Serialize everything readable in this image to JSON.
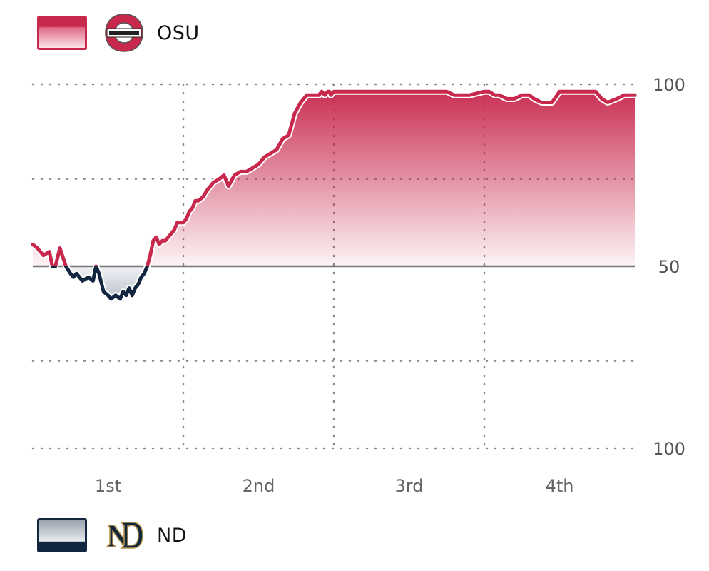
{
  "teams": {
    "top": {
      "name": "OSU",
      "color": "#c8284c",
      "logo_icon": "ohio-state-logo"
    },
    "bottom": {
      "name": "ND",
      "color": "#132640",
      "logo_icon": "notre-dame-logo"
    }
  },
  "chart_data": {
    "type": "area",
    "title": "",
    "xlabel": "",
    "ylabel": "",
    "baseline": 50,
    "ylim": [
      0,
      100
    ],
    "xlim": [
      0,
      4
    ],
    "y_tick_labels": [
      {
        "value": 100,
        "label": "100"
      },
      {
        "value": 50,
        "label": "50"
      },
      {
        "value": 0,
        "label": "100"
      }
    ],
    "x_tick_labels": [
      {
        "value": 0.5,
        "label": "1st"
      },
      {
        "value": 1.5,
        "label": "2nd"
      },
      {
        "value": 2.5,
        "label": "3rd"
      },
      {
        "value": 3.5,
        "label": "4th"
      }
    ],
    "gridlines_y": [
      100,
      74,
      24,
      0
    ],
    "gridlines_x": [
      1,
      2,
      3
    ],
    "grid": true,
    "series": [
      {
        "above_color": "#c8284c",
        "below_color": "#132640",
        "x": [
          0,
          0.03,
          0.07,
          0.11,
          0.13,
          0.15,
          0.18,
          0.22,
          0.25,
          0.27,
          0.29,
          0.33,
          0.37,
          0.4,
          0.42,
          0.44,
          0.47,
          0.5,
          0.52,
          0.55,
          0.58,
          0.6,
          0.62,
          0.64,
          0.66,
          0.68,
          0.7,
          0.72,
          0.74,
          0.76,
          0.78,
          0.8,
          0.82,
          0.84,
          0.86,
          0.88,
          0.9,
          0.92,
          0.94,
          0.96,
          0.98,
          1.0,
          1.02,
          1.04,
          1.06,
          1.08,
          1.1,
          1.13,
          1.16,
          1.2,
          1.24,
          1.27,
          1.3,
          1.34,
          1.38,
          1.42,
          1.46,
          1.5,
          1.54,
          1.58,
          1.62,
          1.66,
          1.7,
          1.74,
          1.78,
          1.82,
          1.86,
          1.9,
          1.92,
          1.94,
          1.96,
          1.97,
          1.98,
          2.0,
          2.02,
          2.05,
          2.1,
          2.2,
          2.3,
          2.45,
          2.6,
          2.75,
          2.8,
          2.9,
          3.0,
          3.03,
          3.07,
          3.1,
          3.15,
          3.2,
          3.25,
          3.3,
          3.33,
          3.38,
          3.45,
          3.5,
          3.6,
          3.65,
          3.7,
          3.74,
          3.78,
          3.82,
          3.88,
          3.93,
          3.96,
          4.0
        ],
        "y": [
          56,
          55,
          53,
          54,
          50,
          50,
          55,
          50,
          48,
          47,
          48,
          46,
          47,
          46,
          50,
          48,
          43,
          42,
          41,
          42,
          41,
          43,
          42,
          44,
          42,
          44,
          45,
          47,
          48,
          50,
          53,
          57,
          58,
          56,
          57,
          57,
          58,
          59,
          60,
          62,
          62,
          62,
          63,
          65,
          66,
          68,
          68,
          69,
          71,
          73,
          74,
          75,
          72,
          75,
          76,
          76,
          77,
          78,
          80,
          81,
          82,
          85,
          86,
          92,
          95,
          97,
          97,
          97,
          98,
          97,
          98,
          98,
          97,
          98,
          98,
          98,
          98,
          98,
          98,
          98,
          98,
          98,
          97,
          97,
          98,
          98,
          97,
          97,
          96,
          96,
          97,
          97,
          96,
          95,
          95,
          98,
          98,
          98,
          98,
          98,
          96,
          95,
          96,
          97,
          97,
          97
        ]
      }
    ]
  }
}
